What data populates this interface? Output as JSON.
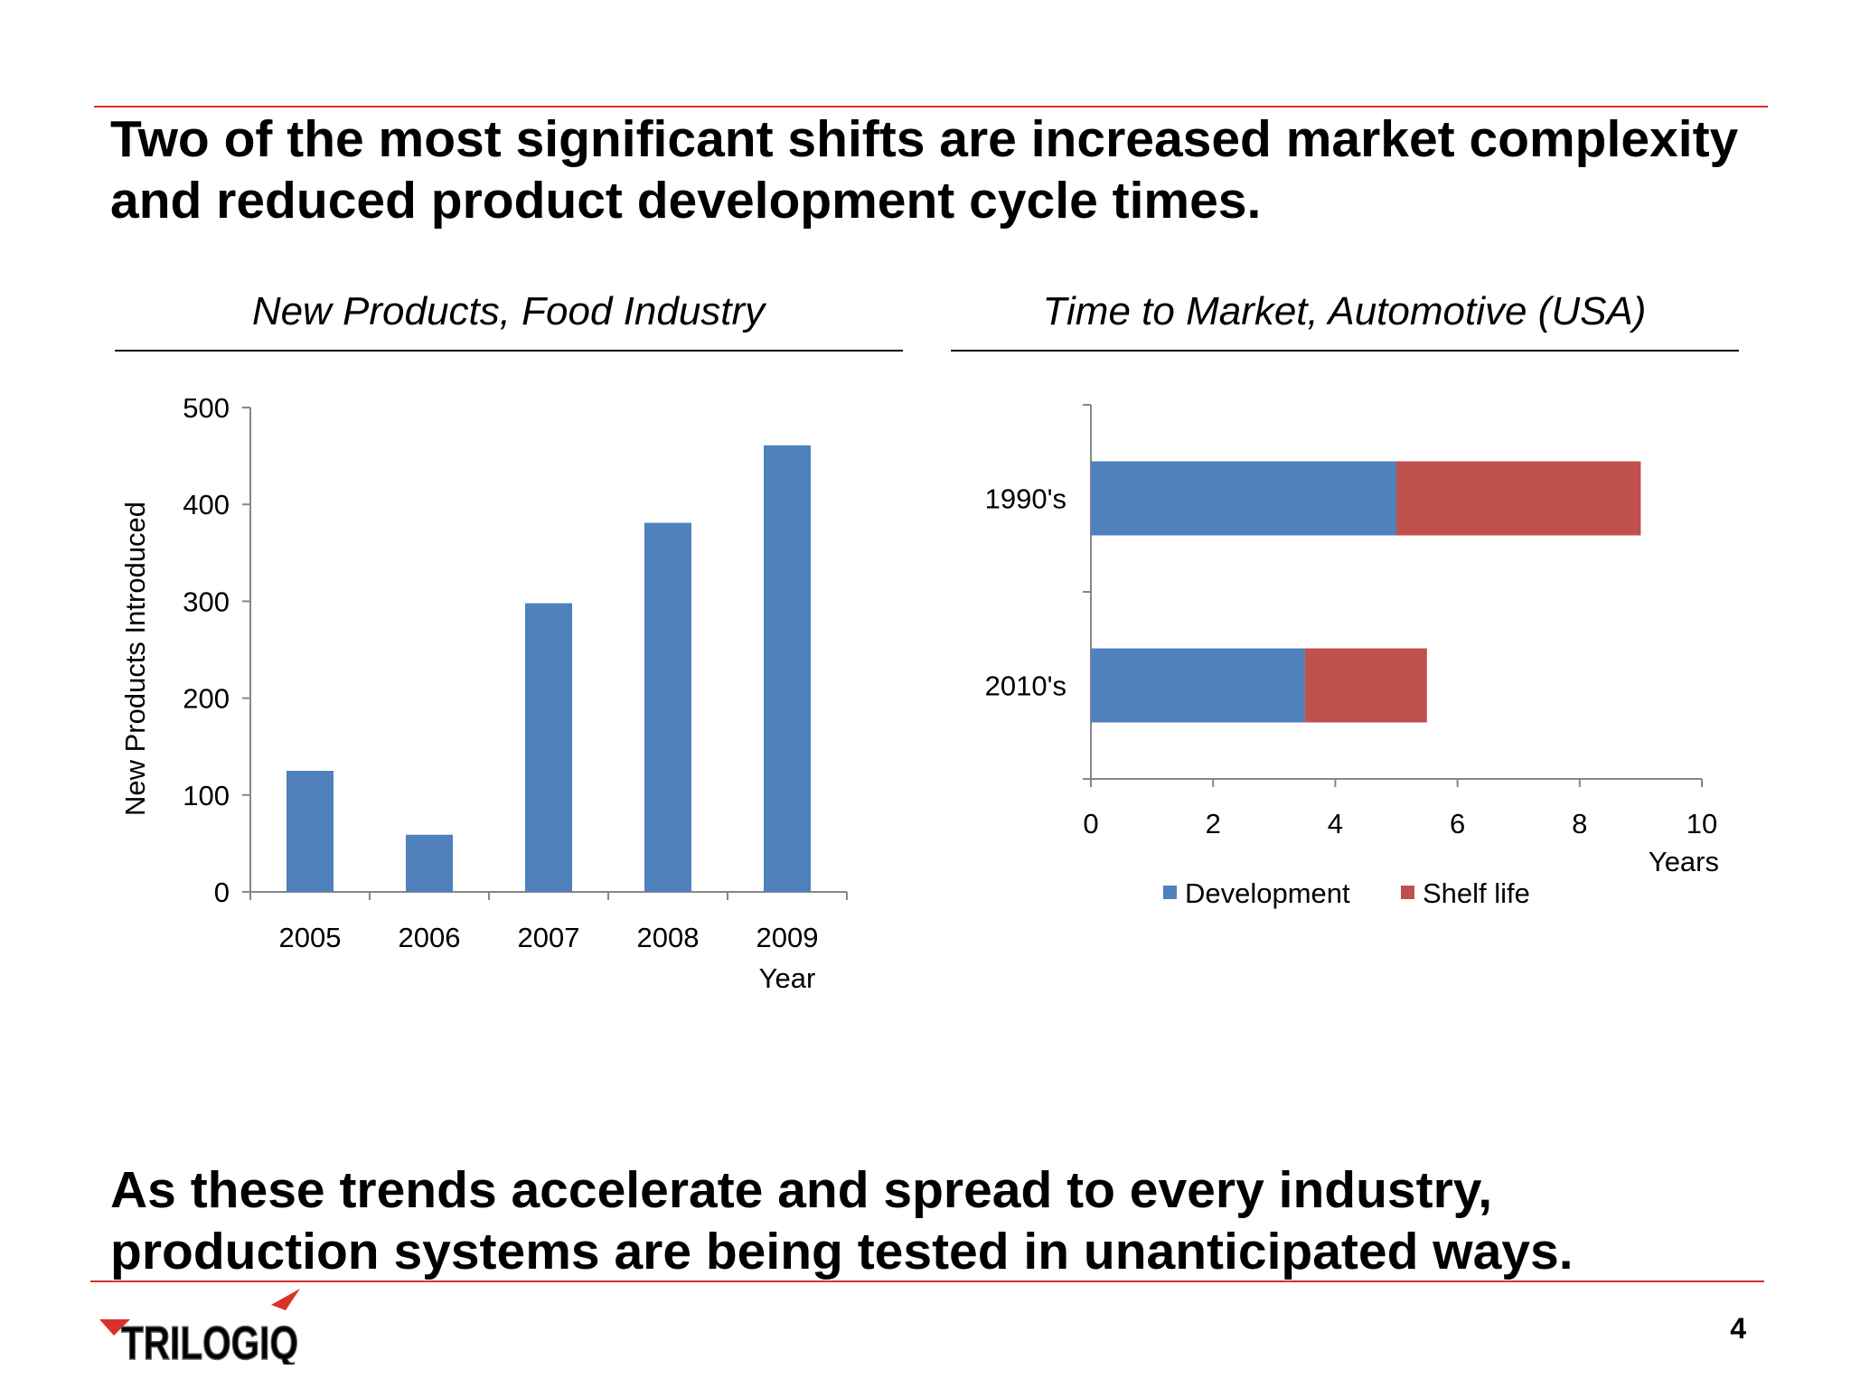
{
  "slide": {
    "headline_top": "Two of the most significant shifts are increased market complexity\nand reduced product development cycle times.",
    "headline_bottom": "As these trends accelerate and spread to every industry,\nproduction systems are being tested in unanticipated ways.",
    "page_number": "4",
    "logo_text": "TRILOGIQ",
    "colors": {
      "accent_red": "#d9312b",
      "blue": "#4f81bd",
      "red": "#c0504d",
      "logo_gray": "#8a8a8a"
    }
  },
  "chart_data": [
    {
      "type": "bar",
      "title": "New Products, Food Industry",
      "xlabel": "Year",
      "ylabel": "New Products Introduced",
      "categories": [
        "2005",
        "2006",
        "2007",
        "2008",
        "2009"
      ],
      "values": [
        125,
        59,
        298,
        381,
        461
      ],
      "ylim": [
        0,
        500
      ],
      "yticks": [
        "0",
        "100",
        "200",
        "300",
        "400",
        "500"
      ],
      "color": "#4f81bd",
      "grid": false
    },
    {
      "type": "bar",
      "orientation": "horizontal",
      "stacked": true,
      "title": "Time to Market, Automotive (USA)",
      "xlabel": "Years",
      "categories": [
        "1990's",
        "2010's"
      ],
      "series": [
        {
          "name": "Development",
          "values": [
            5,
            3.5
          ],
          "color": "#4f81bd"
        },
        {
          "name": "Shelf life",
          "values": [
            4,
            2
          ],
          "color": "#c0504d"
        }
      ],
      "xlim": [
        0,
        10
      ],
      "xticks": [
        "0",
        "2",
        "4",
        "6",
        "8",
        "10"
      ],
      "legend": "bottom",
      "grid": false
    }
  ]
}
